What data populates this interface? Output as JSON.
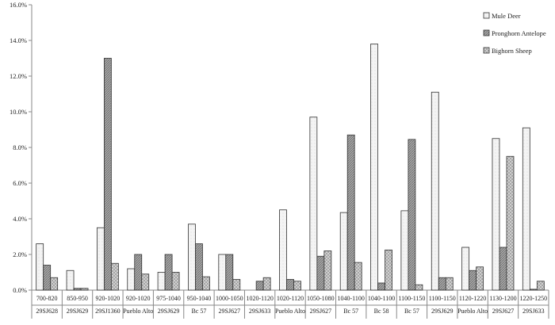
{
  "chart_data": {
    "type": "bar",
    "title": "",
    "xlabel": "",
    "ylabel": "",
    "ylim": [
      0,
      16
    ],
    "y_tick_step": 2,
    "y_tick_format": "percent_1dp",
    "grid": false,
    "legend_position": "top-right",
    "categories": [
      {
        "range": "700-820",
        "site": "29SJ628"
      },
      {
        "range": "850-950",
        "site": "29SJ629"
      },
      {
        "range": "920-1020",
        "site": "29SJ1360"
      },
      {
        "range": "920-1020",
        "site": "Pueblo Alto"
      },
      {
        "range": "975-1040",
        "site": "29SJ629"
      },
      {
        "range": "950-1040",
        "site": "Bc 57"
      },
      {
        "range": "1000-1050",
        "site": "29SJ627"
      },
      {
        "range": "1020-1120",
        "site": "29SJ633"
      },
      {
        "range": "1020-1120",
        "site": "Pueblo Alto"
      },
      {
        "range": "1050-1080",
        "site": "29SJ627"
      },
      {
        "range": "1040-1100",
        "site": "Bc 57"
      },
      {
        "range": "1040-1100",
        "site": "Bc 58"
      },
      {
        "range": "1100-1150",
        "site": "Bc 57"
      },
      {
        "range": "1100-1150",
        "site": "29SJ629"
      },
      {
        "range": "1120-1220",
        "site": "Pueblo Alto"
      },
      {
        "range": "1130-1200",
        "site": "29SJ627"
      },
      {
        "range": "1220-1250",
        "site": "29SJ633"
      }
    ],
    "series": [
      {
        "name": "Mule Deer",
        "fill": "#f2f2f2",
        "values": [
          2.6,
          1.1,
          3.5,
          1.2,
          1.0,
          3.7,
          2.0,
          0.0,
          4.5,
          9.7,
          4.35,
          13.8,
          4.45,
          11.1,
          2.4,
          8.5,
          9.1
        ]
      },
      {
        "name": "Pronghorn Antelope",
        "fill": "#9a9a9a",
        "values": [
          1.4,
          0.1,
          13.0,
          2.0,
          2.0,
          2.6,
          2.0,
          0.5,
          0.6,
          1.9,
          8.7,
          0.4,
          8.45,
          0.7,
          1.1,
          2.4,
          0.05
        ]
      },
      {
        "name": "Bighorn Sheep",
        "fill": "#c8c8c8",
        "values": [
          0.7,
          0.1,
          1.5,
          0.9,
          1.0,
          0.75,
          0.6,
          0.7,
          0.5,
          2.2,
          1.55,
          2.25,
          0.3,
          0.7,
          1.3,
          7.5,
          0.5
        ]
      }
    ]
  }
}
